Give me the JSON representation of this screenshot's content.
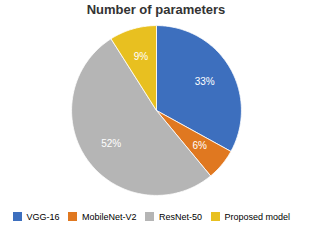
{
  "chart_data": {
    "type": "pie",
    "title": "Number of parameters",
    "categories": [
      "VGG-16",
      "MobileNet-V2",
      "ResNet-50",
      "Proposed model"
    ],
    "values": [
      33,
      6,
      52,
      9
    ],
    "value_labels": [
      "33%",
      "6%",
      "52%",
      "9%"
    ],
    "colors": [
      "#3d6fbe",
      "#e07820",
      "#b5b5b5",
      "#e8c020"
    ],
    "data_labels": true,
    "legend": "bottom"
  }
}
